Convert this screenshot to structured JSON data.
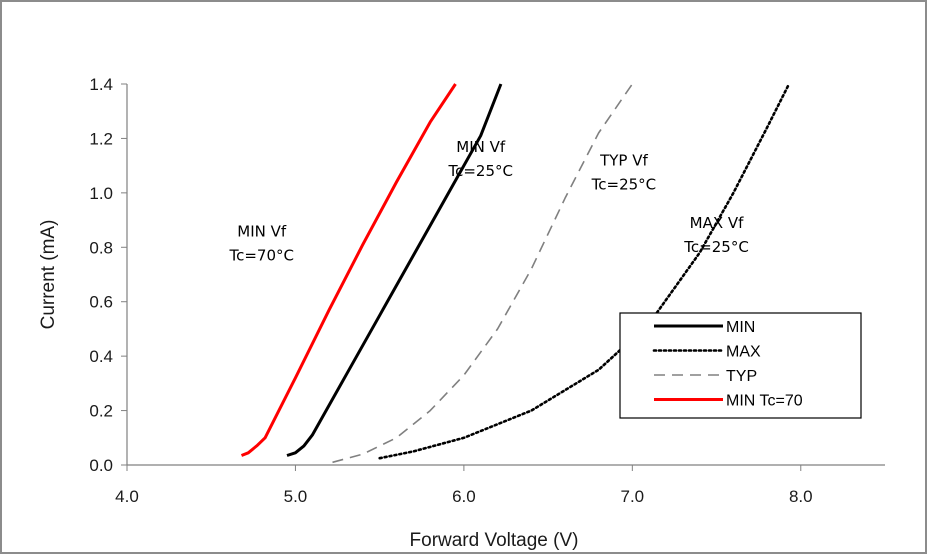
{
  "chart_data": {
    "type": "line",
    "title": "",
    "xlabel": "Forward Voltage (V)",
    "ylabel": "Current (mA)",
    "xlim": [
      4.0,
      8.5
    ],
    "ylim": [
      0.0,
      1.4
    ],
    "x_ticks": [
      "4.0",
      "5.0",
      "6.0",
      "7.0",
      "8.0"
    ],
    "y_ticks": [
      "0.0",
      "0.2",
      "0.4",
      "0.6",
      "0.8",
      "1.0",
      "1.2",
      "1.4"
    ],
    "grid": false,
    "legend_position": "bottom-right",
    "series": [
      {
        "name": "MIN",
        "color": "#000000",
        "style": "solid",
        "points": [
          [
            4.95,
            0.035
          ],
          [
            5.0,
            0.045
          ],
          [
            5.05,
            0.07
          ],
          [
            5.1,
            0.11
          ],
          [
            5.3,
            0.33
          ],
          [
            5.5,
            0.55
          ],
          [
            5.7,
            0.77
          ],
          [
            5.9,
            0.99
          ],
          [
            6.1,
            1.21
          ],
          [
            6.22,
            1.4
          ]
        ]
      },
      {
        "name": "MAX",
        "color": "#000000",
        "style": "dotted",
        "points": [
          [
            5.5,
            0.025
          ],
          [
            5.7,
            0.05
          ],
          [
            6.0,
            0.1
          ],
          [
            6.4,
            0.2
          ],
          [
            6.8,
            0.35
          ],
          [
            7.1,
            0.52
          ],
          [
            7.4,
            0.78
          ],
          [
            7.6,
            1.0
          ],
          [
            7.8,
            1.24
          ],
          [
            7.93,
            1.4
          ]
        ]
      },
      {
        "name": "TYP",
        "color": "#808080",
        "style": "dashed",
        "points": [
          [
            5.22,
            0.01
          ],
          [
            5.4,
            0.04
          ],
          [
            5.6,
            0.1
          ],
          [
            5.8,
            0.2
          ],
          [
            6.0,
            0.33
          ],
          [
            6.2,
            0.5
          ],
          [
            6.4,
            0.72
          ],
          [
            6.6,
            0.98
          ],
          [
            6.8,
            1.22
          ],
          [
            7.0,
            1.4
          ]
        ]
      },
      {
        "name": "MIN  Tc=70",
        "color": "#ff0000",
        "style": "solid",
        "points": [
          [
            4.68,
            0.035
          ],
          [
            4.72,
            0.045
          ],
          [
            4.77,
            0.07
          ],
          [
            4.82,
            0.1
          ],
          [
            5.0,
            0.32
          ],
          [
            5.2,
            0.57
          ],
          [
            5.4,
            0.81
          ],
          [
            5.6,
            1.04
          ],
          [
            5.8,
            1.26
          ],
          [
            5.95,
            1.4
          ]
        ]
      }
    ],
    "annotations": [
      {
        "lines": [
          "MIN Vf",
          "Tc=70°C"
        ],
        "at": [
          4.8,
          0.84
        ]
      },
      {
        "lines": [
          "MIN Vf",
          "Tc=25°C"
        ],
        "at": [
          6.1,
          1.15
        ]
      },
      {
        "lines": [
          "TYP Vf",
          "Tc=25°C"
        ],
        "at": [
          6.95,
          1.1
        ]
      },
      {
        "lines": [
          "MAX Vf",
          "Tc=25°C"
        ],
        "at": [
          7.5,
          0.87
        ]
      }
    ]
  }
}
